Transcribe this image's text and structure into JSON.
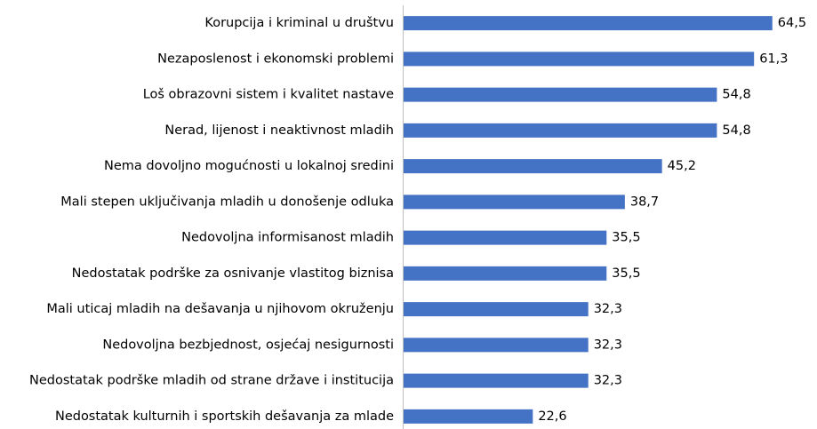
{
  "chart_data": {
    "type": "bar",
    "orientation": "horizontal",
    "categories": [
      "Korupcija i kriminal u društvu",
      "Nezaposlenost i ekonomski problemi",
      "Loš obrazovni sistem i kvalitet nastave",
      "Nerad, lijenost i neaktivnost mladih",
      "Nema dovoljno mogućnosti u lokalnoj sredini",
      "Mali stepen uključivanja mladih u donošenje odluka",
      "Nedovoljna informisanost mladih",
      "Nedostatak podrške za osnivanje vlastitog biznisa",
      "Mali uticaj mladih na dešavanja u njihovom okruženju",
      "Nedovoljna bezbjednost, osjećaj nesigurnosti",
      "Nedostatak podrške mladih od strane države i institucija",
      "Nedostatak kulturnih i sportskih dešavanja za mlade"
    ],
    "values": [
      64.5,
      61.3,
      54.8,
      54.8,
      45.2,
      38.7,
      35.5,
      35.5,
      32.3,
      32.3,
      32.3,
      22.6
    ],
    "value_labels": [
      "64,5",
      "61,3",
      "54,8",
      "54,8",
      "45,2",
      "38,7",
      "35,5",
      "35,5",
      "32,3",
      "32,3",
      "32,3",
      "22,6"
    ],
    "color": "#4472c4",
    "xlim": [
      0,
      72
    ]
  }
}
